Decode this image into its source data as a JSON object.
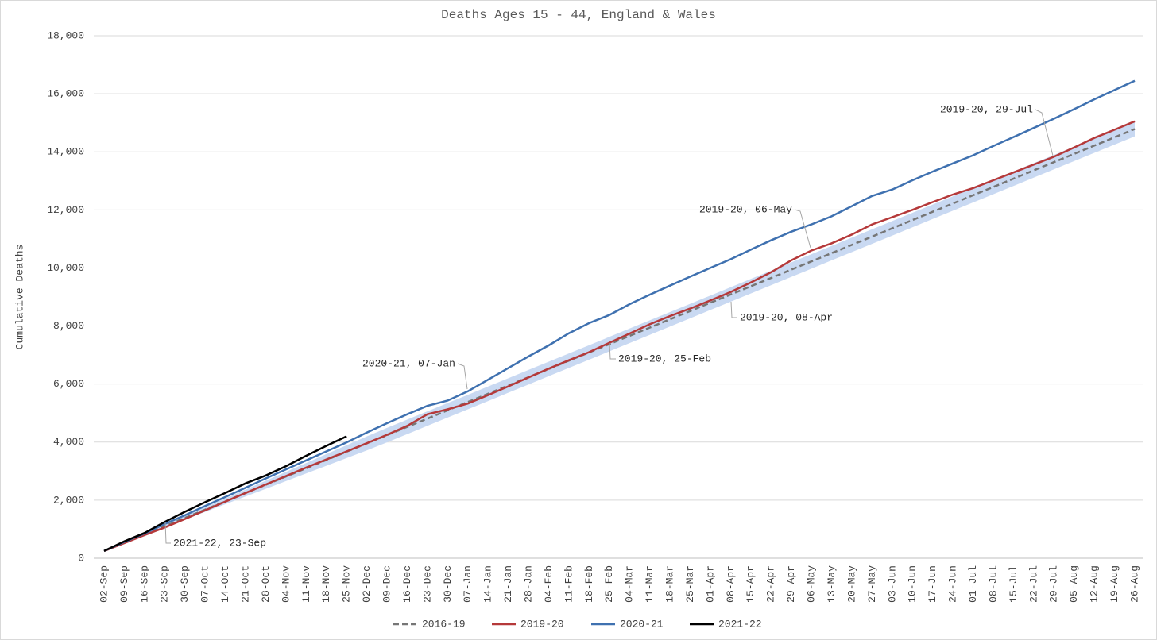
{
  "chart_data": {
    "type": "line",
    "title": "Deaths Ages 15 - 44, England & Wales",
    "y_label": "Cumulative Deaths",
    "categories": [
      "02-Sep",
      "09-Sep",
      "16-Sep",
      "23-Sep",
      "30-Sep",
      "07-Oct",
      "14-Oct",
      "21-Oct",
      "28-Oct",
      "04-Nov",
      "11-Nov",
      "18-Nov",
      "25-Nov",
      "02-Dec",
      "09-Dec",
      "16-Dec",
      "23-Dec",
      "30-Dec",
      "07-Jan",
      "14-Jan",
      "21-Jan",
      "28-Jan",
      "04-Feb",
      "11-Feb",
      "18-Feb",
      "25-Feb",
      "04-Mar",
      "11-Mar",
      "18-Mar",
      "25-Mar",
      "01-Apr",
      "08-Apr",
      "15-Apr",
      "22-Apr",
      "29-Apr",
      "06-May",
      "13-May",
      "20-May",
      "27-May",
      "03-Jun",
      "10-Jun",
      "17-Jun",
      "24-Jun",
      "01-Jul",
      "08-Jul",
      "15-Jul",
      "22-Jul",
      "29-Jul",
      "05-Aug",
      "12-Aug",
      "19-Aug",
      "26-Aug"
    ],
    "band": {
      "color": "#c9d9f2",
      "lower": [
        250,
        515,
        790,
        1055,
        1330,
        1595,
        1860,
        2125,
        2390,
        2655,
        2920,
        3185,
        3450,
        3715,
        3990,
        4275,
        4560,
        4845,
        5130,
        5415,
        5700,
        5985,
        6270,
        6555,
        6840,
        7125,
        7410,
        7695,
        7980,
        8265,
        8550,
        8835,
        9120,
        9405,
        9690,
        9975,
        10260,
        10545,
        10830,
        11115,
        11400,
        11685,
        11970,
        12255,
        12540,
        12825,
        13110,
        13395,
        13680,
        13965,
        14250,
        14535
      ],
      "upper": [
        250,
        555,
        850,
        1155,
        1450,
        1755,
        2060,
        2365,
        2670,
        2975,
        3280,
        3585,
        3890,
        4195,
        4490,
        4775,
        5060,
        5345,
        5630,
        5915,
        6200,
        6485,
        6770,
        7055,
        7340,
        7625,
        7910,
        8195,
        8480,
        8765,
        9050,
        9335,
        9620,
        9905,
        10190,
        10475,
        10760,
        11045,
        11330,
        11615,
        11900,
        12185,
        12470,
        12755,
        13040,
        13325,
        13610,
        13895,
        14180,
        14465,
        14750,
        15035
      ]
    },
    "series": [
      {
        "name": "2016-19",
        "color": "#767676",
        "dashed": true,
        "values": [
          250,
          535,
          820,
          1105,
          1390,
          1675,
          1960,
          2245,
          2530,
          2815,
          3100,
          3385,
          3670,
          3955,
          4240,
          4525,
          4810,
          5095,
          5380,
          5665,
          5950,
          6235,
          6520,
          6805,
          7090,
          7375,
          7660,
          7945,
          8230,
          8515,
          8800,
          9085,
          9370,
          9655,
          9940,
          10225,
          10510,
          10795,
          11080,
          11365,
          11650,
          11935,
          12220,
          12505,
          12790,
          13075,
          13360,
          13645,
          13930,
          14215,
          14500,
          14785
        ]
      },
      {
        "name": "2019-20",
        "color": "#b5393a",
        "values": [
          250,
          520,
          800,
          1060,
          1350,
          1650,
          1950,
          2250,
          2540,
          2830,
          3120,
          3400,
          3680,
          3960,
          4250,
          4560,
          4960,
          5130,
          5330,
          5620,
          5920,
          6230,
          6530,
          6820,
          7100,
          7420,
          7740,
          8060,
          8340,
          8600,
          8880,
          9170,
          9500,
          9850,
          10260,
          10600,
          10850,
          11150,
          11500,
          11750,
          12000,
          12270,
          12530,
          12750,
          13020,
          13290,
          13560,
          13830,
          14150,
          14480,
          14760,
          15050
        ]
      },
      {
        "name": "2020-21",
        "color": "#3f71b0",
        "values": [
          250,
          560,
          850,
          1180,
          1480,
          1800,
          2110,
          2430,
          2750,
          3060,
          3370,
          3680,
          3990,
          4330,
          4650,
          4960,
          5250,
          5430,
          5750,
          6150,
          6550,
          6950,
          7330,
          7750,
          8100,
          8380,
          8750,
          9080,
          9390,
          9700,
          10000,
          10300,
          10630,
          10950,
          11250,
          11500,
          11780,
          12130,
          12480,
          12700,
          13020,
          13320,
          13600,
          13880,
          14200,
          14510,
          14820,
          15140,
          15470,
          15810,
          16130,
          16450
        ]
      },
      {
        "name": "2021-22",
        "color": "#000000",
        "values": [
          250,
          580,
          870,
          1250,
          1600,
          1930,
          2250,
          2580,
          2850,
          3170,
          3530,
          3870,
          4200,
          null,
          null,
          null,
          null,
          null,
          null,
          null,
          null,
          null,
          null,
          null,
          null,
          null,
          null,
          null,
          null,
          null,
          null,
          null,
          null,
          null,
          null,
          null,
          null,
          null,
          null,
          null,
          null,
          null,
          null,
          null,
          null,
          null,
          null,
          null,
          null,
          null,
          null,
          null
        ]
      }
    ],
    "ylim": [
      0,
      18000
    ],
    "yticks": [
      0,
      {
        "value": 2000,
        "label": "2,000"
      },
      {
        "value": 4000,
        "label": "4,000"
      },
      {
        "value": 6000,
        "label": "6,000"
      },
      {
        "value": 8000,
        "label": "8,000"
      },
      {
        "value": 10000,
        "label": "10,000"
      },
      {
        "value": 12000,
        "label": "12,000"
      },
      {
        "value": 14000,
        "label": "14,000"
      },
      {
        "value": 16000,
        "label": "16,000"
      },
      {
        "value": 18000,
        "label": "18,000"
      }
    ],
    "grid": true,
    "legend": "bottom",
    "annotations": [
      "2019-20, 29-Jul",
      "2019-20, 06-May",
      "2020-21, 07-Jan",
      "2019-20, 08-Apr",
      "2019-20, 25-Feb",
      "2021-22, 23-Sep"
    ]
  }
}
